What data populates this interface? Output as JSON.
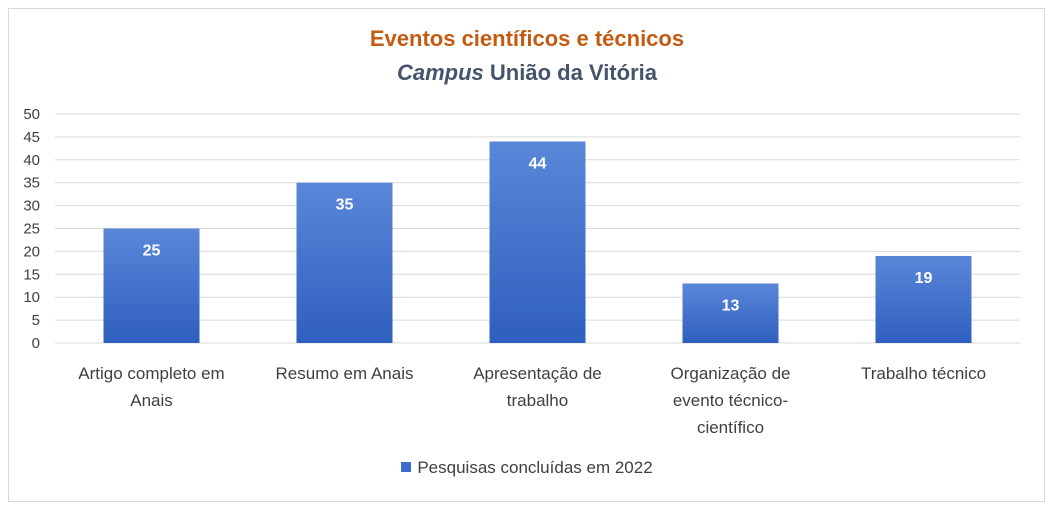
{
  "chart_data": {
    "type": "bar",
    "title": "Eventos científicos e técnicos",
    "subtitle_italic": "Campus",
    "subtitle_rest": " União da Vitória",
    "categories": [
      [
        "Artigo completo em",
        "Anais"
      ],
      [
        "Resumo em Anais"
      ],
      [
        "Apresentação de",
        "trabalho"
      ],
      [
        "Organização de",
        "evento técnico-",
        "científico"
      ],
      [
        "Trabalho técnico"
      ]
    ],
    "series": [
      {
        "name": "Pesquisas concluídas em 2022",
        "values": [
          25,
          35,
          44,
          13,
          19
        ]
      }
    ],
    "ylim": [
      0,
      50
    ],
    "yticks": [
      0,
      5,
      10,
      15,
      20,
      25,
      30,
      35,
      40,
      45,
      50
    ],
    "grid": true,
    "legend_position": "bottom",
    "colors": {
      "bar_top": "#5a87d8",
      "bar_bottom": "#2f5fbf",
      "title": "#c55a11",
      "subtitle": "#44546a",
      "grid": "#d9d9d9"
    }
  }
}
